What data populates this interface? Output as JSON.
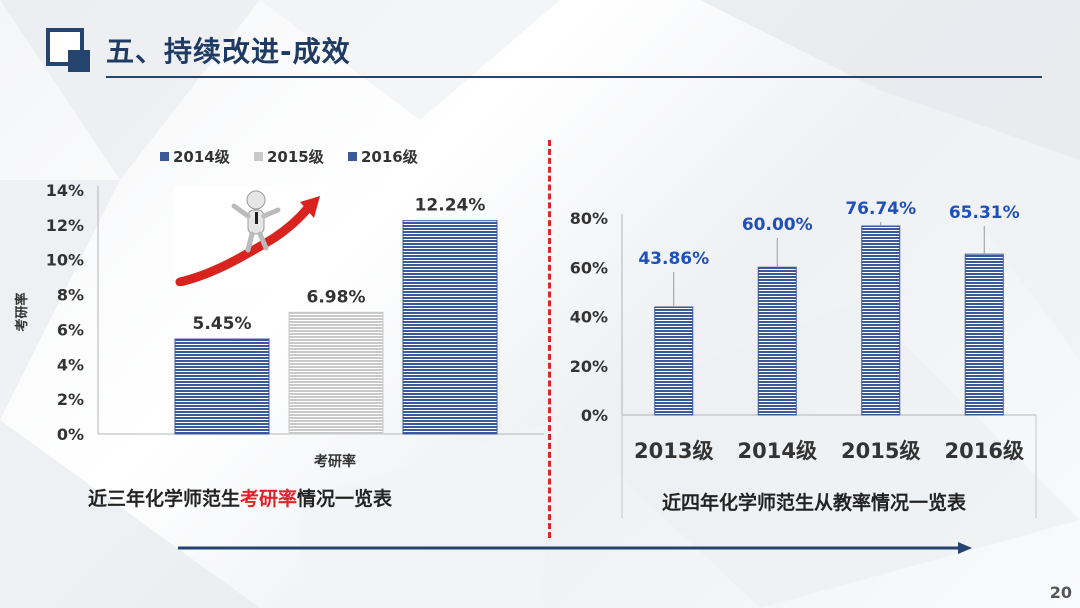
{
  "slide": {
    "title": "五、持续改进-成效",
    "page_number": "20"
  },
  "colors": {
    "accent": "#24446f",
    "bar_blue": "#3b5998",
    "bar_gray": "#c9c9c9",
    "highlight_red": "#e0242a",
    "right_label": "#1f4fb8"
  },
  "left_caption": {
    "before": "近三年化学师范生",
    "highlight": "考研率",
    "after": "情况一览表"
  },
  "right_caption": "近四年化学师范生从教率情况一览表",
  "chart_data": [
    {
      "type": "bar",
      "ylabel": "考研率",
      "xlabel": "考研率",
      "categories": [
        "考研率"
      ],
      "series": [
        {
          "name": "2014级",
          "values": [
            5.45
          ],
          "color": "#3b5998",
          "label": "5.45%"
        },
        {
          "name": "2015级",
          "values": [
            6.98
          ],
          "color": "#c9c9c9",
          "label": "6.98%"
        },
        {
          "name": "2016级",
          "values": [
            12.24
          ],
          "color": "#3b5998",
          "label": "12.24%"
        }
      ],
      "ylim": [
        0,
        14
      ],
      "yticks": [
        "0%",
        "2%",
        "4%",
        "6%",
        "8%",
        "10%",
        "12%",
        "14%"
      ],
      "legend_position": "top",
      "grid": false
    },
    {
      "type": "bar",
      "categories": [
        "2013级",
        "2014级",
        "2015级",
        "2016级"
      ],
      "values": [
        43.86,
        60.0,
        76.74,
        65.31
      ],
      "labels": [
        "43.86%",
        "60.00%",
        "76.74%",
        "65.31%"
      ],
      "ylim": [
        0,
        80
      ],
      "yticks": [
        "0%",
        "20%",
        "40%",
        "60%",
        "80%"
      ],
      "grid": false
    }
  ]
}
